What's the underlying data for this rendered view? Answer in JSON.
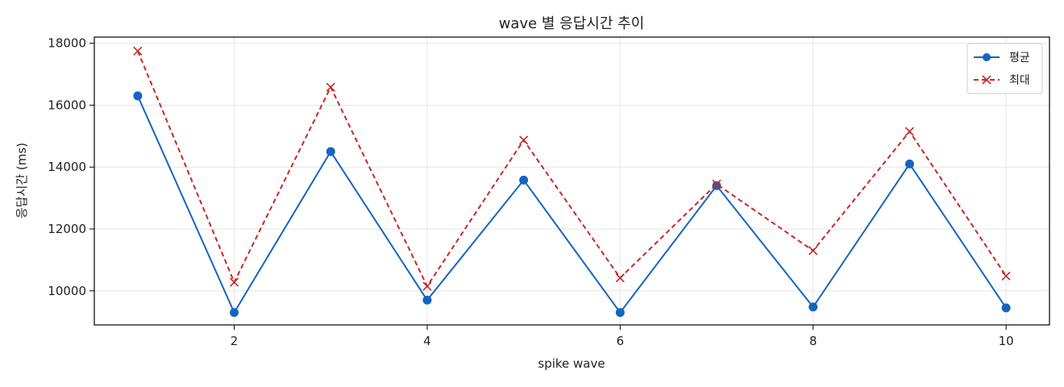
{
  "chart_data": {
    "type": "line",
    "title": "wave 별 응답시간 추이",
    "xlabel": "spike wave",
    "ylabel": "응답시간 (ms)",
    "x": [
      1,
      2,
      3,
      4,
      5,
      6,
      7,
      8,
      9,
      10
    ],
    "xlim": [
      0.55,
      10.45
    ],
    "ylim": [
      8900,
      18200
    ],
    "xticks": [
      2,
      4,
      6,
      8,
      10
    ],
    "yticks": [
      10000,
      12000,
      14000,
      16000,
      18000
    ],
    "grid": true,
    "legend_position": "top-right",
    "series": [
      {
        "name": "평균",
        "color": "#1565c0",
        "marker": "circle",
        "line_style": "solid",
        "values": [
          16300,
          9300,
          14500,
          9700,
          13580,
          9300,
          13400,
          9480,
          14100,
          9450
        ]
      },
      {
        "name": "최대",
        "color": "#c62828",
        "marker": "x",
        "line_style": "dashed",
        "values": [
          17750,
          10280,
          16580,
          10150,
          14870,
          10420,
          13450,
          11300,
          15150,
          10480
        ]
      }
    ]
  }
}
